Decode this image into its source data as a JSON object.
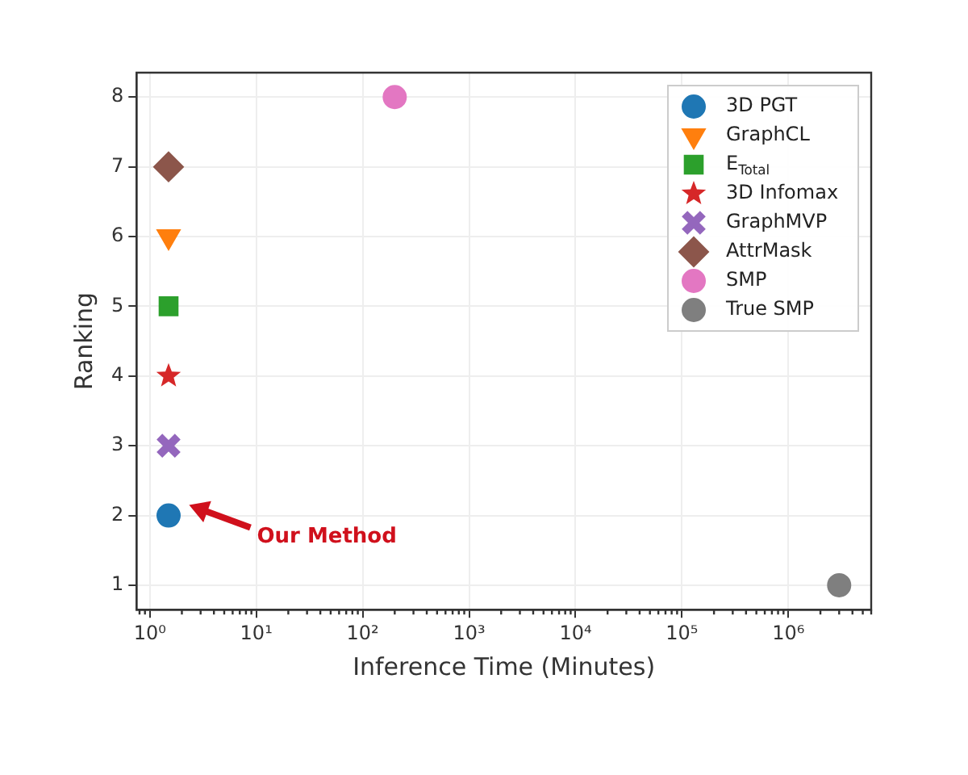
{
  "chart_data": {
    "type": "scatter",
    "xlabel": "Inference Time (Minutes)",
    "ylabel": "Ranking",
    "log": "x",
    "xlim": [
      0.75,
      6000000
    ],
    "xticks": [
      {
        "value": 1,
        "label": "10⁰"
      },
      {
        "value": 10,
        "label": "10¹"
      },
      {
        "value": 100,
        "label": "10²"
      },
      {
        "value": 1000,
        "label": "10³"
      },
      {
        "value": 10000,
        "label": "10⁴"
      },
      {
        "value": 100000,
        "label": "10⁵"
      },
      {
        "value": 1000000,
        "label": "10⁶"
      }
    ],
    "ylim": [
      0.65,
      8.35
    ],
    "yticks": [
      1,
      2,
      3,
      4,
      5,
      6,
      7,
      8
    ],
    "grid": true,
    "legend": "top right",
    "series": [
      {
        "name": "3D PGT",
        "color": "#1f77b4",
        "marker": "circle",
        "x": [
          1.5
        ],
        "values": [
          2
        ]
      },
      {
        "name": "GraphCL",
        "color": "#ff7f0e",
        "marker": "triangle",
        "x": [
          1.5
        ],
        "values": [
          6
        ]
      },
      {
        "name": "E$_{Total}$",
        "color": "#2ca02c",
        "marker": "square",
        "x": [
          1.5
        ],
        "values": [
          5
        ]
      },
      {
        "name": "3D Infomax",
        "color": "#d62728",
        "marker": "star",
        "x": [
          1.5
        ],
        "values": [
          4
        ]
      },
      {
        "name": "GraphMVP",
        "color": "#9467bd",
        "marker": "cross",
        "x": [
          1.5
        ],
        "values": [
          3
        ]
      },
      {
        "name": "AttrMask",
        "color": "#8c564b",
        "marker": "diamond",
        "x": [
          1.5
        ],
        "values": [
          7
        ]
      },
      {
        "name": "SMP",
        "color": "#e377c2",
        "marker": "circle",
        "x": [
          200
        ],
        "values": [
          8
        ]
      },
      {
        "name": "True SMP",
        "color": "#7f7f7f",
        "marker": "circle",
        "x": [
          3000000
        ],
        "values": [
          1
        ]
      }
    ],
    "annotations": [
      "Our Method"
    ]
  }
}
